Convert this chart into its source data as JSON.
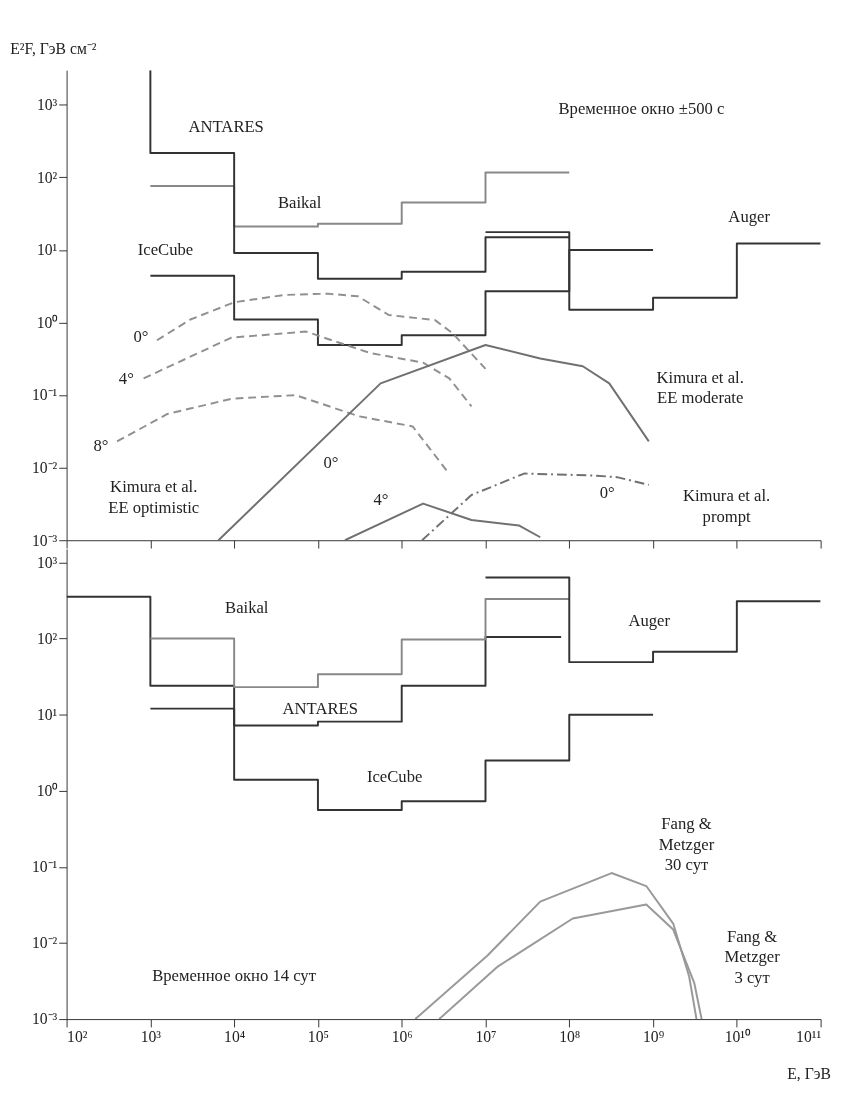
{
  "chart_data": [
    {
      "type": "line",
      "ylabel": "E²F, ГэВ см⁻²",
      "log": "xy",
      "grid": false,
      "tick_labels": "y",
      "xlim": [
        100.0,
        100000000000.0
      ],
      "ylim": [
        0.001,
        3000
      ],
      "xticks": [
        {
          "value": 100.0,
          "label": null
        },
        {
          "value": 1000.0,
          "label": null
        },
        {
          "value": 10000.0,
          "label": null
        },
        {
          "value": 100000.0,
          "label": null
        },
        {
          "value": 1000000.0,
          "label": null
        },
        {
          "value": 10000000.0,
          "label": null
        },
        {
          "value": 100000000.0,
          "label": null
        },
        {
          "value": 1000000000.0,
          "label": null
        },
        {
          "value": 10000000000.0,
          "label": null
        },
        {
          "value": 100000000000.0,
          "label": null
        }
      ],
      "yticks": [
        {
          "value": 0.001,
          "label": "10⁻³"
        },
        {
          "value": 0.01,
          "label": "10⁻²"
        },
        {
          "value": 0.1,
          "label": "10⁻¹"
        },
        {
          "value": 1,
          "label": "10⁰"
        },
        {
          "value": 10,
          "label": "10¹"
        },
        {
          "value": 100,
          "label": "10²"
        },
        {
          "value": 1000,
          "label": "10³"
        }
      ],
      "series": [
        {
          "name": "Baikal",
          "color": "#888888",
          "line_style": "solid",
          "x": [
            1000.0,
            10000.0,
            10000.0,
            100000.0,
            100000.0,
            1000000.0,
            1000000.0,
            10000000.0,
            10000000.0,
            100000000.0
          ],
          "values": [
            76,
            76,
            21,
            21,
            23,
            23,
            45,
            45,
            117,
            117
          ]
        },
        {
          "name": "ANTARES",
          "color": "#333333",
          "line_style": "solid",
          "x": [
            1000.0,
            1000.0,
            10000.0,
            10000.0,
            100000.0,
            100000.0,
            1000000.0,
            1000000.0,
            10000000.0,
            10000000.0,
            100000000.0
          ],
          "values": [
            3000,
            217,
            217,
            9.1,
            9.1,
            4.0,
            4.0,
            5.0,
            5.0,
            15,
            15
          ]
        },
        {
          "name": "IceCube",
          "color": "#333333",
          "line_style": "solid",
          "x": [
            1000.0,
            10000.0,
            10000.0,
            100000.0,
            100000.0,
            1000000.0,
            1000000.0,
            10000000.0,
            10000000.0,
            100000000.0,
            100000000.0,
            1000000000.0
          ],
          "values": [
            4.4,
            4.4,
            1.1,
            1.1,
            0.49,
            0.49,
            0.67,
            0.67,
            2.7,
            2.7,
            10,
            10
          ]
        },
        {
          "name": "Auger",
          "color": "#333333",
          "line_style": "solid",
          "x": [
            10000000.0,
            100000000.0,
            100000000.0,
            1000000000.0,
            1000000000.0,
            10000000000.0,
            10000000000.0,
            100000000000.0
          ],
          "values": [
            17.6,
            17.6,
            1.5,
            1.5,
            2.2,
            2.2,
            12.3,
            12.3
          ]
        },
        {
          "name": "0°",
          "color": "#909090",
          "line_style": "dashed",
          "x": [
            1200.0,
            3000.0,
            10000.0,
            40000.0,
            130000.0,
            300000.0,
            700000.0,
            2500000.0,
            4000000.0,
            10000000.0
          ],
          "values": [
            0.57,
            1.1,
            1.9,
            2.4,
            2.5,
            2.3,
            1.27,
            1.08,
            0.72,
            0.23
          ]
        },
        {
          "name": "4°",
          "color": "#909090",
          "line_style": "dashed",
          "x": [
            830,
            9300.0,
            72000.0,
            420000.0,
            1800000.0,
            3700000.0,
            6800000.0
          ],
          "values": [
            0.17,
            0.62,
            0.75,
            0.38,
            0.28,
            0.17,
            0.07
          ]
        },
        {
          "name": "8°",
          "color": "#909090",
          "line_style": "dashed",
          "x": [
            400,
            1600.0,
            9300.0,
            54000.0,
            310000.0,
            1350000.0,
            3500000.0
          ],
          "values": [
            0.023,
            0.055,
            0.089,
            0.1,
            0.051,
            0.037,
            0.0089
          ]
        },
        {
          "name": "0°",
          "color": "#707070",
          "line_style": "solid",
          "x": [
            6500.0,
            560000.0,
            10000000.0,
            45000000.0,
            145000000.0,
            300000000.0,
            890000000.0
          ],
          "values": [
            0.001,
            0.145,
            0.49,
            0.32,
            0.25,
            0.145,
            0.023
          ]
        },
        {
          "name": "4°",
          "color": "#707070",
          "line_style": "solid",
          "x": [
            210000.0,
            1800000.0,
            6800000.0,
            25000000.0,
            45000000.0
          ],
          "values": [
            0.001,
            0.0032,
            0.0019,
            0.0016,
            0.0011
          ]
        },
        {
          "name": "0°",
          "color": "#707070",
          "line_style": "dashdot",
          "x": [
            1750000.0,
            6800000.0,
            29000000.0,
            195000000.0,
            370000000.0,
            890000000.0
          ],
          "values": [
            0.001,
            0.0042,
            0.0083,
            0.0078,
            0.0074,
            0.0058
          ]
        }
      ],
      "annotations": [
        "Временное окно ±500 с",
        "Kimura et al.\nEE optimistic",
        "Kimura et al.\nEE moderate",
        "Kimura et al.\nprompt"
      ]
    },
    {
      "type": "line",
      "xlabel": "E, ГэВ",
      "log": "xy",
      "grid": false,
      "xlim": [
        100.0,
        100000000000.0
      ],
      "ylim": [
        0.001,
        1500
      ],
      "xticks": [
        {
          "value": 100.0,
          "label": "10²"
        },
        {
          "value": 1000.0,
          "label": "10³"
        },
        {
          "value": 10000.0,
          "label": "10⁴"
        },
        {
          "value": 100000.0,
          "label": "10⁵"
        },
        {
          "value": 1000000.0,
          "label": "10⁶"
        },
        {
          "value": 10000000.0,
          "label": "10⁷"
        },
        {
          "value": 100000000.0,
          "label": "10⁸"
        },
        {
          "value": 1000000000.0,
          "label": "10⁹"
        },
        {
          "value": 10000000000.0,
          "label": "10¹⁰"
        },
        {
          "value": 100000000000.0,
          "label": "10¹¹"
        }
      ],
      "yticks": [
        {
          "value": 0.001,
          "label": "10⁻³"
        },
        {
          "value": 0.01,
          "label": "10⁻²"
        },
        {
          "value": 0.1,
          "label": "10⁻¹"
        },
        {
          "value": 1,
          "label": "10⁰"
        },
        {
          "value": 10,
          "label": "10¹"
        },
        {
          "value": 100,
          "label": "10²"
        },
        {
          "value": 1000,
          "label": "10³"
        }
      ],
      "series": [
        {
          "name": "ANTARES",
          "color": "#333333",
          "line_style": "solid",
          "x": [
            100.0,
            1000.0,
            1000.0,
            10000.0,
            10000.0,
            100000.0,
            100000.0,
            1000000.0,
            1000000.0,
            10000000.0,
            10000000.0,
            80000000.0
          ],
          "values": [
            355,
            355,
            24,
            24,
            7.2,
            7.2,
            8.1,
            8.1,
            24,
            24,
            105,
            105
          ]
        },
        {
          "name": "Baikal",
          "color": "#888888",
          "line_style": "solid",
          "x": [
            1000.0,
            10000.0,
            10000.0,
            100000.0,
            100000.0,
            1000000.0,
            1000000.0,
            10000000.0,
            10000000.0,
            100000000.0
          ],
          "values": [
            100,
            100,
            23,
            23,
            34,
            34,
            97,
            97,
            330,
            330
          ]
        },
        {
          "name": "Auger",
          "color": "#333333",
          "line_style": "solid",
          "x": [
            10000000.0,
            100000000.0,
            100000000.0,
            1000000000.0,
            1000000000.0,
            10000000000.0,
            10000000000.0,
            100000000000.0
          ],
          "values": [
            635,
            635,
            49,
            49,
            67,
            67,
            310,
            310
          ]
        },
        {
          "name": "IceCube",
          "color": "#333333",
          "line_style": "solid",
          "x": [
            1000.0,
            10000.0,
            10000.0,
            100000.0,
            100000.0,
            1000000.0,
            1000000.0,
            10000000.0,
            10000000.0,
            100000000.0,
            100000000.0,
            1000000000.0
          ],
          "values": [
            12,
            12,
            1.4,
            1.4,
            0.56,
            0.56,
            0.73,
            0.73,
            2.5,
            2.5,
            10,
            10
          ]
        },
        {
          "name": "Fang &\nMetzger\n30 сут",
          "color": "#999999",
          "line_style": "solid",
          "x": [
            1450000.0,
            10500000.0,
            45000000.0,
            320000000.0,
            830000000.0,
            1740000000.0,
            2700000000.0,
            3300000000.0
          ],
          "values": [
            0.001,
            0.0068,
            0.035,
            0.083,
            0.056,
            0.018,
            0.0036,
            0.001
          ]
        },
        {
          "name": "Fang &\nMetzger\n3 сут",
          "color": "#999999",
          "line_style": "solid",
          "x": [
            2800000.0,
            14000000.0,
            110000000.0,
            830000000.0,
            1740000000.0,
            3100000000.0,
            3800000000.0
          ],
          "values": [
            0.001,
            0.0049,
            0.021,
            0.032,
            0.015,
            0.003,
            0.001
          ]
        }
      ],
      "annotations": [
        "Временное окно 14 сут"
      ]
    }
  ]
}
